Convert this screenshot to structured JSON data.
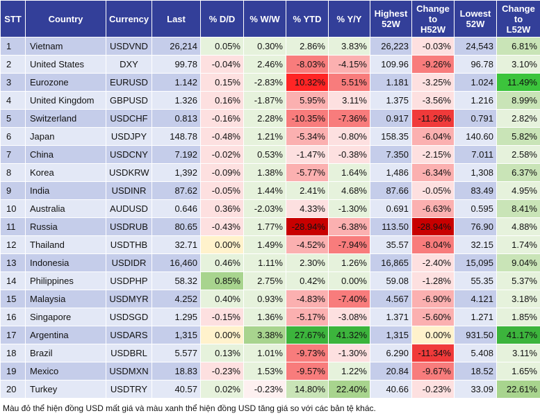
{
  "table": {
    "header": [
      "STT",
      "Country",
      "Currency",
      "Last",
      "% D/D",
      "% W/W",
      "% YTD",
      "% Y/Y",
      "Highest\n52W",
      "Change\nto\nH52W",
      "Lowest\n52W",
      "Change\nto\nL52W"
    ],
    "rows": [
      {
        "cells": [
          "1",
          "Vietnam",
          "USDVND",
          "26,214",
          "0.05%",
          "0.30%",
          "2.86%",
          "3.83%",
          "26,223",
          "-0.03%",
          "24,543",
          "6.81%"
        ],
        "fills": [
          "#e6f2dc",
          "#e6f2dc",
          "#e6f2dc",
          "#e6f2dc",
          "#fde0e0",
          "#c9e4b7"
        ]
      },
      {
        "cells": [
          "2",
          "United States",
          "DXY",
          "99.78",
          "-0.04%",
          "2.46%",
          "-8.03%",
          "-4.15%",
          "109.96",
          "-9.26%",
          "96.78",
          "3.10%"
        ],
        "fills": [
          "#fde0e0",
          "#e6f2dc",
          "#f87c7c",
          "#fbb0b0",
          "#f87c7c",
          "#e6f2dc"
        ]
      },
      {
        "cells": [
          "3",
          "Eurozone",
          "EURUSD",
          "1.142",
          "0.15%",
          "-2.83%",
          "10.32%",
          "5.51%",
          "1.181",
          "-3.25%",
          "1.024",
          "11.49%"
        ],
        "fills": [
          "#fde0e0",
          "#e6f2dc",
          "#ff2525",
          "#f87c7c",
          "#fde0e0",
          "#3cc43c"
        ]
      },
      {
        "cells": [
          "4",
          "United Kingdom",
          "GBPUSD",
          "1.326",
          "0.16%",
          "-1.87%",
          "5.95%",
          "3.11%",
          "1.375",
          "-3.56%",
          "1.216",
          "8.99%"
        ],
        "fills": [
          "#fde0e0",
          "#e6f2dc",
          "#fbb0b0",
          "#fde0e0",
          "#fde0e0",
          "#c9e4b7"
        ]
      },
      {
        "cells": [
          "5",
          "Switzerland",
          "USDCHF",
          "0.813",
          "-0.16%",
          "2.28%",
          "-10.35%",
          "-7.36%",
          "0.917",
          "-11.26%",
          "0.791",
          "2.82%"
        ],
        "fills": [
          "#fde0e0",
          "#e6f2dc",
          "#f87c7c",
          "#f87c7c",
          "#f03a3a",
          "#e6f2dc"
        ]
      },
      {
        "cells": [
          "6",
          "Japan",
          "USDJPY",
          "148.78",
          "-0.48%",
          "1.21%",
          "-5.34%",
          "-0.80%",
          "158.35",
          "-6.04%",
          "140.60",
          "5.82%"
        ],
        "fills": [
          "#fde0e0",
          "#e6f2dc",
          "#fbb0b0",
          "#fde0e0",
          "#fbb0b0",
          "#c9e4b7"
        ]
      },
      {
        "cells": [
          "7",
          "China",
          "USDCNY",
          "7.192",
          "-0.02%",
          "0.53%",
          "-1.47%",
          "-0.38%",
          "7.350",
          "-2.15%",
          "7.011",
          "2.58%"
        ],
        "fills": [
          "#fde0e0",
          "#e6f2dc",
          "#fde0e0",
          "#fde0e0",
          "#fde0e0",
          "#e6f2dc"
        ]
      },
      {
        "cells": [
          "8",
          "Korea",
          "USDKRW",
          "1,392",
          "-0.09%",
          "1.38%",
          "-5.77%",
          "1.64%",
          "1,486",
          "-6.34%",
          "1,308",
          "6.37%"
        ],
        "fills": [
          "#fde0e0",
          "#e6f2dc",
          "#fbb0b0",
          "#e6f2dc",
          "#fbb0b0",
          "#c9e4b7"
        ]
      },
      {
        "cells": [
          "9",
          "India",
          "USDINR",
          "87.62",
          "-0.05%",
          "1.44%",
          "2.41%",
          "4.68%",
          "87.66",
          "-0.05%",
          "83.49",
          "4.95%"
        ],
        "fills": [
          "#fde0e0",
          "#e6f2dc",
          "#e6f2dc",
          "#e6f2dc",
          "#fde0e0",
          "#e6f2dc"
        ]
      },
      {
        "cells": [
          "10",
          "Australia",
          "AUDUSD",
          "0.646",
          "0.36%",
          "-2.03%",
          "4.33%",
          "-1.30%",
          "0.691",
          "-6.63%",
          "0.595",
          "8.41%"
        ],
        "fills": [
          "#fde0e0",
          "#e6f2dc",
          "#fde0e0",
          "#e6f2dc",
          "#fbb0b0",
          "#c9e4b7"
        ]
      },
      {
        "cells": [
          "11",
          "Russia",
          "USDRUB",
          "80.65",
          "-0.43%",
          "1.77%",
          "-28.94%",
          "-6.38%",
          "113.50",
          "-28.94%",
          "76.90",
          "4.88%"
        ],
        "fills": [
          "#fde0e0",
          "#e6f2dc",
          "#c80000",
          "#fbb0b0",
          "#c80000",
          "#e6f2dc"
        ]
      },
      {
        "cells": [
          "12",
          "Thailand",
          "USDTHB",
          "32.71",
          "0.00%",
          "1.49%",
          "-4.52%",
          "-7.94%",
          "35.57",
          "-8.04%",
          "32.15",
          "1.74%"
        ],
        "fills": [
          "#fff2cc",
          "#e6f2dc",
          "#fbb0b0",
          "#f87c7c",
          "#f87c7c",
          "#e6f2dc"
        ]
      },
      {
        "cells": [
          "13",
          "Indonesia",
          "USDIDR",
          "16,460",
          "0.46%",
          "1.11%",
          "2.30%",
          "1.26%",
          "16,865",
          "-2.40%",
          "15,095",
          "9.04%"
        ],
        "fills": [
          "#e6f2dc",
          "#e6f2dc",
          "#e6f2dc",
          "#e6f2dc",
          "#fde0e0",
          "#c9e4b7"
        ]
      },
      {
        "cells": [
          "14",
          "Philippines",
          "USDPHP",
          "58.32",
          "0.85%",
          "2.75%",
          "0.42%",
          "0.00%",
          "59.08",
          "-1.28%",
          "55.35",
          "5.37%"
        ],
        "fills": [
          "#a8d48e",
          "#e6f2dc",
          "#e6f2dc",
          "#e6f2dc",
          "#fde0e0",
          "#e6f2dc"
        ]
      },
      {
        "cells": [
          "15",
          "Malaysia",
          "USDMYR",
          "4.252",
          "0.40%",
          "0.93%",
          "-4.83%",
          "-7.40%",
          "4.567",
          "-6.90%",
          "4.121",
          "3.18%"
        ],
        "fills": [
          "#e6f2dc",
          "#e6f2dc",
          "#fbb0b0",
          "#f87c7c",
          "#fbb0b0",
          "#e6f2dc"
        ]
      },
      {
        "cells": [
          "16",
          "Singapore",
          "USDSGD",
          "1.295",
          "-0.15%",
          "1.36%",
          "-5.17%",
          "-3.08%",
          "1.371",
          "-5.60%",
          "1.271",
          "1.85%"
        ],
        "fills": [
          "#fde0e0",
          "#e6f2dc",
          "#fbb0b0",
          "#fde0e0",
          "#fbb0b0",
          "#e6f2dc"
        ]
      },
      {
        "cells": [
          "17",
          "Argentina",
          "USDARS",
          "1,315",
          "0.00%",
          "3.38%",
          "27.67%",
          "41.32%",
          "1,315",
          "0.00%",
          "931.50",
          "41.17%"
        ],
        "fills": [
          "#fff2cc",
          "#a8d48e",
          "#3cb43c",
          "#3cb43c",
          "#fff2cc",
          "#3cb43c"
        ]
      },
      {
        "cells": [
          "18",
          "Brazil",
          "USDBRL",
          "5.577",
          "0.13%",
          "1.01%",
          "-9.73%",
          "-1.30%",
          "6.290",
          "-11.34%",
          "5.408",
          "3.11%"
        ],
        "fills": [
          "#e6f2dc",
          "#e6f2dc",
          "#f87c7c",
          "#fde0e0",
          "#f03a3a",
          "#e6f2dc"
        ]
      },
      {
        "cells": [
          "19",
          "Mexico",
          "USDMXN",
          "18.83",
          "-0.23%",
          "1.53%",
          "-9.57%",
          "1.22%",
          "20.84",
          "-9.67%",
          "18.52",
          "1.65%"
        ],
        "fills": [
          "#fde0e0",
          "#e6f2dc",
          "#f87c7c",
          "#e6f2dc",
          "#f87c7c",
          "#e6f2dc"
        ]
      },
      {
        "cells": [
          "20",
          "Turkey",
          "USDTRY",
          "40.57",
          "0.02%",
          "-0.23%",
          "14.80%",
          "22.40%",
          "40.66",
          "-0.23%",
          "33.09",
          "22.61%"
        ],
        "fills": [
          "#e6f2dc",
          "#fdf0f0",
          "#c9e4b7",
          "#a8d48e",
          "#fde0e0",
          "#a8d48e"
        ]
      }
    ]
  },
  "footer": "Màu đỏ thể hiện đồng USD mất giá và màu xanh thể hiện đồng USD tăng giá so với các bản tệ khác."
}
